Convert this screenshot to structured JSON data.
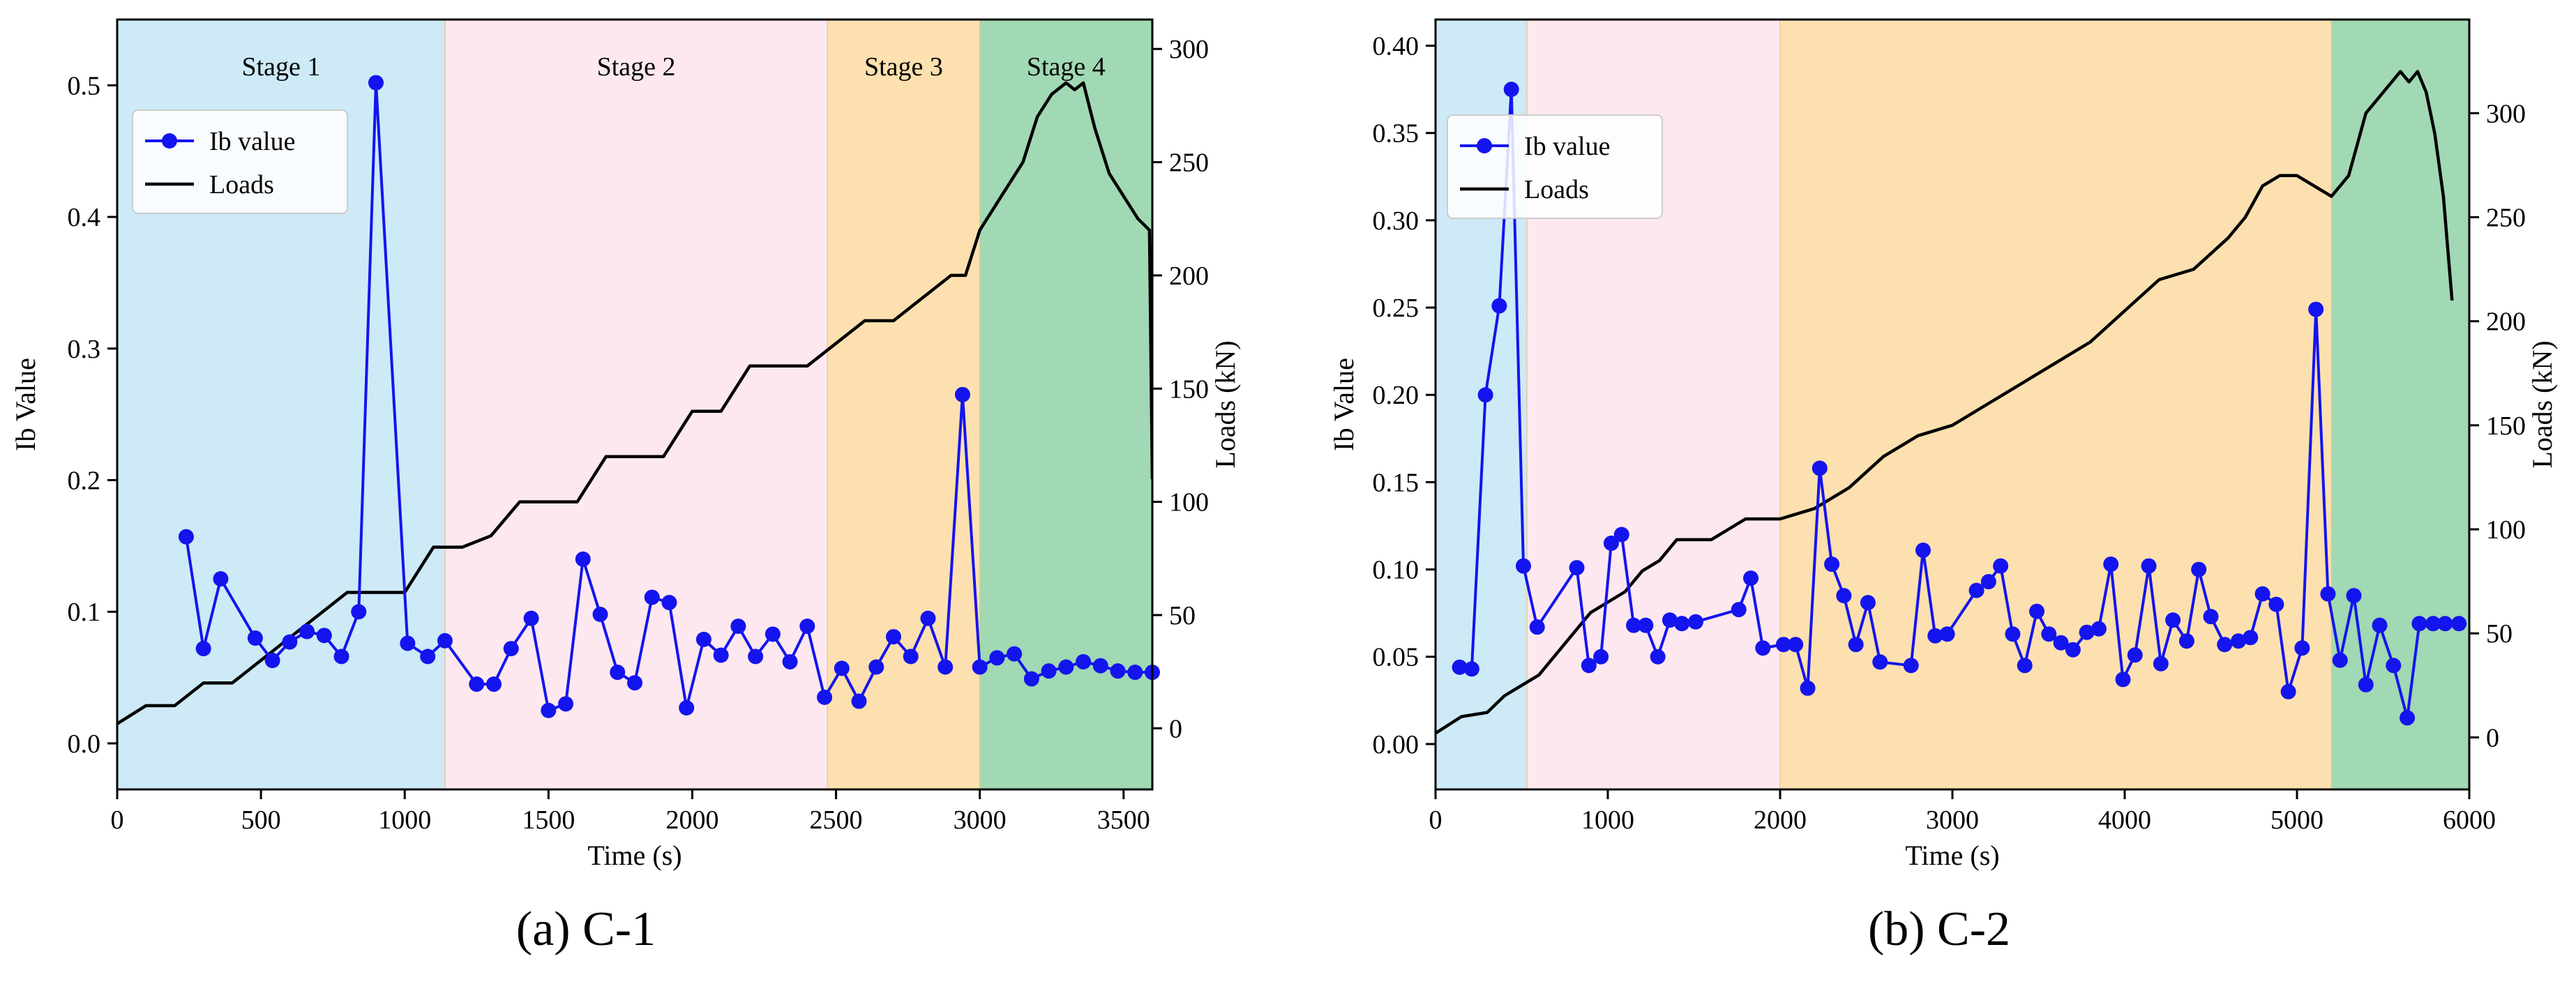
{
  "colors": {
    "stage1": "#cdeaf6",
    "stage2": "#fde8ef",
    "stage3": "#fde0af",
    "stage4": "#a0d9b3",
    "ib": "#1414ee",
    "loads": "#000000",
    "axis": "#000000"
  },
  "chart_data": [
    {
      "type": "line",
      "subplot_label": "(a) C-1",
      "xlabel": "Time (s)",
      "ylabel": "Ib Value",
      "y2label": "Loads (kN)",
      "xlim": [
        0,
        3600
      ],
      "ylim": [
        -0.035,
        0.55
      ],
      "y2lim": [
        -27,
        313
      ],
      "xticks": [
        0,
        500,
        1000,
        1500,
        2000,
        2500,
        3000,
        3500
      ],
      "xtick_labels": [
        "0",
        "500",
        "1000",
        "1500",
        "2000",
        "2500",
        "3000",
        "3500"
      ],
      "yticks": [
        0.0,
        0.1,
        0.2,
        0.3,
        0.4,
        0.5
      ],
      "ytick_labels": [
        "0.0",
        "0.1",
        "0.2",
        "0.3",
        "0.4",
        "0.5"
      ],
      "y2ticks": [
        0,
        50,
        100,
        150,
        200,
        250,
        300
      ],
      "y2tick_labels": [
        "0",
        "50",
        "100",
        "150",
        "200",
        "250",
        "300"
      ],
      "legend_position": "upper-left",
      "stages": [
        {
          "name": "Stage 1",
          "start": 0,
          "end": 1140,
          "color_key": "stage1"
        },
        {
          "name": "Stage 2",
          "start": 1140,
          "end": 2470,
          "color_key": "stage2"
        },
        {
          "name": "Stage 3",
          "start": 2470,
          "end": 3000,
          "color_key": "stage3"
        },
        {
          "name": "Stage 4",
          "start": 3000,
          "end": 3600,
          "color_key": "stage4"
        }
      ],
      "series": [
        {
          "name": "Ib value",
          "axis": "left",
          "marker": "circle",
          "color_key": "ib",
          "x": [
            240,
            300,
            360,
            480,
            540,
            600,
            660,
            720,
            780,
            840,
            900,
            1010,
            1080,
            1140,
            1250,
            1310,
            1370,
            1440,
            1500,
            1560,
            1620,
            1680,
            1740,
            1800,
            1860,
            1920,
            1980,
            2040,
            2100,
            2160,
            2220,
            2280,
            2340,
            2400,
            2460,
            2520,
            2580,
            2640,
            2700,
            2760,
            2820,
            2880,
            2940,
            3000,
            3060,
            3120,
            3180,
            3240,
            3300,
            3360,
            3420,
            3480,
            3540,
            3600
          ],
          "y": [
            0.157,
            0.072,
            0.125,
            0.08,
            0.063,
            0.077,
            0.085,
            0.082,
            0.066,
            0.1,
            0.502,
            0.076,
            0.066,
            0.078,
            0.045,
            0.045,
            0.072,
            0.095,
            0.025,
            0.03,
            0.14,
            0.098,
            0.054,
            0.046,
            0.111,
            0.107,
            0.027,
            0.079,
            0.067,
            0.089,
            0.066,
            0.083,
            0.062,
            0.089,
            0.035,
            0.057,
            0.032,
            0.058,
            0.081,
            0.066,
            0.095,
            0.058,
            0.265,
            0.058,
            0.065,
            0.068,
            0.049,
            0.055,
            0.058,
            0.062,
            0.059,
            0.055,
            0.054,
            0.054
          ]
        },
        {
          "name": "Loads",
          "axis": "right",
          "marker": "none",
          "color_key": "loads",
          "x": [
            0,
            100,
            200,
            300,
            400,
            500,
            600,
            700,
            800,
            900,
            1000,
            1100,
            1200,
            1300,
            1400,
            1500,
            1600,
            1700,
            1800,
            1900,
            2000,
            2100,
            2200,
            2300,
            2400,
            2500,
            2600,
            2700,
            2800,
            2900,
            2950,
            3000,
            3050,
            3100,
            3150,
            3200,
            3250,
            3300,
            3330,
            3360,
            3400,
            3450,
            3500,
            3550,
            3590,
            3600
          ],
          "y": [
            2,
            10,
            10,
            20,
            20,
            30,
            40,
            50,
            60,
            60,
            60,
            80,
            80,
            85,
            100,
            100,
            100,
            120,
            120,
            120,
            140,
            140,
            160,
            160,
            160,
            170,
            180,
            180,
            190,
            200,
            200,
            220,
            230,
            240,
            250,
            270,
            280,
            285,
            282,
            285,
            265,
            245,
            235,
            225,
            220,
            110
          ]
        }
      ]
    },
    {
      "type": "line",
      "subplot_label": "(b) C-2",
      "xlabel": "Time (s)",
      "ylabel": "Ib Value",
      "y2label": "Loads (kN)",
      "xlim": [
        0,
        6000
      ],
      "ylim": [
        -0.026,
        0.415
      ],
      "y2lim": [
        -25,
        345
      ],
      "xticks": [
        0,
        1000,
        2000,
        3000,
        4000,
        5000,
        6000
      ],
      "xtick_labels": [
        "0",
        "1000",
        "2000",
        "3000",
        "4000",
        "5000",
        "6000"
      ],
      "yticks": [
        0.0,
        0.05,
        0.1,
        0.15,
        0.2,
        0.25,
        0.3,
        0.35,
        0.4
      ],
      "ytick_labels": [
        "0.00",
        "0.05",
        "0.10",
        "0.15",
        "0.20",
        "0.25",
        "0.30",
        "0.35",
        "0.40"
      ],
      "y2ticks": [
        0,
        50,
        100,
        150,
        200,
        250,
        300
      ],
      "y2tick_labels": [
        "0",
        "50",
        "100",
        "150",
        "200",
        "250",
        "300"
      ],
      "legend_position": "upper-left",
      "stages": [
        {
          "name": "",
          "start": 0,
          "end": 530,
          "color_key": "stage1"
        },
        {
          "name": "",
          "start": 530,
          "end": 2000,
          "color_key": "stage2"
        },
        {
          "name": "",
          "start": 2000,
          "end": 5200,
          "color_key": "stage3"
        },
        {
          "name": "",
          "start": 5200,
          "end": 6000,
          "color_key": "stage4"
        }
      ],
      "series": [
        {
          "name": "Ib value",
          "axis": "left",
          "marker": "circle",
          "color_key": "ib",
          "x": [
            140,
            210,
            290,
            370,
            440,
            510,
            590,
            820,
            890,
            960,
            1020,
            1080,
            1150,
            1220,
            1290,
            1360,
            1430,
            1510,
            1760,
            1830,
            1900,
            2020,
            2090,
            2160,
            2230,
            2300,
            2370,
            2440,
            2510,
            2580,
            2760,
            2830,
            2900,
            2970,
            3140,
            3210,
            3280,
            3350,
            3420,
            3490,
            3560,
            3630,
            3700,
            3780,
            3850,
            3920,
            3990,
            4060,
            4140,
            4210,
            4280,
            4360,
            4430,
            4500,
            4580,
            4660,
            4730,
            4800,
            4880,
            4950,
            5030,
            5110,
            5180,
            5250,
            5330,
            5400,
            5480,
            5560,
            5640,
            5710,
            5790,
            5860,
            5940
          ],
          "y": [
            0.044,
            0.043,
            0.2,
            0.251,
            0.375,
            0.102,
            0.067,
            0.101,
            0.045,
            0.05,
            0.115,
            0.12,
            0.068,
            0.068,
            0.05,
            0.071,
            0.069,
            0.07,
            0.077,
            0.095,
            0.055,
            0.057,
            0.057,
            0.032,
            0.158,
            0.103,
            0.085,
            0.057,
            0.081,
            0.047,
            0.045,
            0.111,
            0.062,
            0.063,
            0.088,
            0.093,
            0.102,
            0.063,
            0.045,
            0.076,
            0.063,
            0.058,
            0.054,
            0.064,
            0.066,
            0.103,
            0.037,
            0.051,
            0.102,
            0.046,
            0.071,
            0.059,
            0.1,
            0.073,
            0.057,
            0.059,
            0.061,
            0.086,
            0.08,
            0.03,
            0.055,
            0.249,
            0.086,
            0.048,
            0.085,
            0.034,
            0.068,
            0.045,
            0.015,
            0.069,
            0.069,
            0.069,
            0.069
          ]
        },
        {
          "name": "Loads",
          "axis": "right",
          "marker": "none",
          "color_key": "loads",
          "x": [
            0,
            150,
            300,
            400,
            500,
            600,
            700,
            800,
            900,
            1000,
            1100,
            1200,
            1300,
            1400,
            1500,
            1600,
            1700,
            1800,
            1900,
            2000,
            2200,
            2400,
            2600,
            2800,
            3000,
            3200,
            3400,
            3600,
            3800,
            4000,
            4200,
            4400,
            4600,
            4700,
            4800,
            4900,
            5000,
            5100,
            5200,
            5300,
            5400,
            5500,
            5600,
            5650,
            5700,
            5750,
            5800,
            5850,
            5900
          ],
          "y": [
            2,
            10,
            12,
            20,
            25,
            30,
            40,
            50,
            60,
            65,
            70,
            80,
            85,
            95,
            95,
            95,
            100,
            105,
            105,
            105,
            110,
            120,
            135,
            145,
            150,
            160,
            170,
            180,
            190,
            205,
            220,
            225,
            240,
            250,
            265,
            270,
            270,
            265,
            260,
            270,
            300,
            310,
            320,
            315,
            320,
            310,
            290,
            260,
            210
          ]
        }
      ]
    }
  ]
}
